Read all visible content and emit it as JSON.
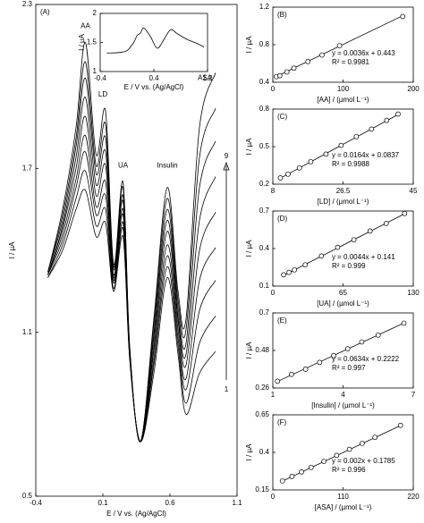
{
  "chart_data": [
    {
      "type": "line",
      "label": "(A)",
      "xlabel": "E / V vs. (Ag/AgCl)",
      "ylabel": "I / µA",
      "xlim": [
        -0.4,
        1.1
      ],
      "xticks": [
        -0.4,
        0.1,
        0.6,
        1.1
      ],
      "ylim": [
        0.5,
        2.3
      ],
      "yticks": [
        0.5,
        1.1,
        1.7,
        2.3
      ],
      "x": [
        -0.31,
        -0.2,
        -0.1,
        -0.03,
        0.05,
        0.12,
        0.18,
        0.25,
        0.3,
        0.38,
        0.48,
        0.58,
        0.66,
        0.72,
        0.82,
        0.94
      ],
      "series": [
        {
          "color": "#000000",
          "values": [
            1.3,
            1.4,
            1.55,
            1.62,
            1.45,
            1.5,
            1.25,
            1.45,
            1.0,
            0.7,
            0.95,
            1.3,
            1.02,
            0.8,
            0.95,
            1.03
          ]
        },
        {
          "color": "#000000",
          "values": [
            1.3,
            1.42,
            1.59,
            1.69,
            1.49,
            1.55,
            1.26,
            1.48,
            1.01,
            0.7,
            0.98,
            1.34,
            1.05,
            0.84,
            1.06,
            1.16
          ]
        },
        {
          "color": "#000000",
          "values": [
            1.31,
            1.44,
            1.63,
            1.76,
            1.53,
            1.6,
            1.28,
            1.5,
            1.01,
            0.7,
            1.0,
            1.38,
            1.08,
            0.89,
            1.18,
            1.29
          ]
        },
        {
          "color": "#000000",
          "values": [
            1.31,
            1.46,
            1.66,
            1.82,
            1.56,
            1.65,
            1.29,
            1.53,
            1.02,
            0.7,
            1.03,
            1.42,
            1.11,
            0.93,
            1.29,
            1.41
          ]
        },
        {
          "color": "#000000",
          "values": [
            1.31,
            1.48,
            1.7,
            1.89,
            1.6,
            1.71,
            1.3,
            1.55,
            1.03,
            0.7,
            1.05,
            1.47,
            1.14,
            0.98,
            1.4,
            1.54
          ]
        },
        {
          "color": "#000000",
          "values": [
            1.31,
            1.49,
            1.74,
            1.96,
            1.64,
            1.76,
            1.31,
            1.58,
            1.03,
            0.7,
            1.08,
            1.51,
            1.16,
            1.02,
            1.51,
            1.67
          ]
        },
        {
          "color": "#000000",
          "values": [
            1.32,
            1.51,
            1.78,
            2.03,
            1.68,
            1.81,
            1.33,
            1.6,
            1.04,
            0.7,
            1.1,
            1.55,
            1.19,
            1.06,
            1.63,
            1.8
          ]
        },
        {
          "color": "#000000",
          "values": [
            1.32,
            1.53,
            1.81,
            2.09,
            1.71,
            1.86,
            1.34,
            1.63,
            1.04,
            0.7,
            1.13,
            1.59,
            1.22,
            1.11,
            1.74,
            1.92
          ]
        },
        {
          "color": "#000000",
          "values": [
            1.32,
            1.55,
            1.85,
            2.16,
            1.75,
            1.91,
            1.35,
            1.65,
            1.05,
            0.7,
            1.15,
            1.63,
            1.25,
            1.15,
            1.85,
            2.05
          ]
        }
      ],
      "annotations": [
        {
          "text": "AA",
          "x": -0.03,
          "y": 2.22
        },
        {
          "text": "LD",
          "x": 0.1,
          "y": 1.97
        },
        {
          "text": "UA",
          "x": 0.25,
          "y": 1.71
        },
        {
          "text": "Insulin",
          "x": 0.58,
          "y": 1.71
        },
        {
          "text": "ASA",
          "x": 0.86,
          "y": 2.03
        }
      ],
      "arrow_labels": [
        "1",
        "9"
      ]
    },
    {
      "type": "line",
      "xlabel": "E / V vs. (Ag/AgCl)",
      "ylabel": "I / µA",
      "xlim": [
        -0.4,
        1.2
      ],
      "xticks": [
        -0.4,
        0.4,
        1.2
      ],
      "ylim": [
        1,
        2
      ],
      "yticks": [
        1,
        1.5,
        2
      ],
      "x": [
        -0.3,
        -0.2,
        -0.1,
        0,
        0.1,
        0.15,
        0.2,
        0.25,
        0.35,
        0.45,
        0.55,
        0.65,
        0.75,
        0.9,
        1.05,
        1.15
      ],
      "series": [
        {
          "color": "#000000",
          "values": [
            1.32,
            1.32,
            1.33,
            1.36,
            1.5,
            1.62,
            1.66,
            1.75,
            1.6,
            1.4,
            1.55,
            1.72,
            1.65,
            1.55,
            1.48,
            1.42
          ]
        }
      ]
    },
    {
      "type": "scatter",
      "label": "(B)",
      "xlabel": "[AA] / (µmol L⁻¹)",
      "ylabel": "I / µA",
      "xlim": [
        0,
        200
      ],
      "xticks": [
        0,
        100,
        200
      ],
      "ylim": [
        0.4,
        1.2
      ],
      "yticks": [
        0.4,
        0.8,
        1.2
      ],
      "x": [
        5,
        10,
        20,
        30,
        50,
        70,
        95,
        185
      ],
      "values": [
        0.46,
        0.47,
        0.51,
        0.55,
        0.62,
        0.69,
        0.79,
        1.1
      ],
      "fit": {
        "slope": 0.0036,
        "intercept": 0.443,
        "label": "y = 0.0036x + 0.443",
        "r2_label": "R² = 0.9981"
      }
    },
    {
      "type": "scatter",
      "label": "(C)",
      "xlabel": "[LD] / (µmol L⁻¹)",
      "ylabel": "I / µA",
      "xlim": [
        8,
        45
      ],
      "xticks": [
        8,
        26.5,
        45
      ],
      "ylim": [
        0.2,
        0.8
      ],
      "yticks": [
        0.2,
        0.5,
        0.8
      ],
      "x": [
        10,
        12,
        15,
        18,
        22,
        26,
        30,
        34,
        38,
        41
      ],
      "values": [
        0.25,
        0.28,
        0.33,
        0.38,
        0.44,
        0.51,
        0.58,
        0.64,
        0.71,
        0.76
      ],
      "fit": {
        "slope": 0.0164,
        "intercept": 0.0837,
        "label": "y = 0.0164x + 0.0837",
        "r2_label": "R² = 0.9988"
      }
    },
    {
      "type": "scatter",
      "label": "(D)",
      "xlabel": "[UA] / (µmol L⁻¹)",
      "ylabel": "I / µA",
      "xlim": [
        0,
        130
      ],
      "xticks": [
        0,
        65,
        130
      ],
      "ylim": [
        0.1,
        0.7
      ],
      "yticks": [
        0.1,
        0.4,
        0.7
      ],
      "x": [
        10,
        15,
        20,
        30,
        45,
        60,
        75,
        90,
        105,
        122
      ],
      "values": [
        0.19,
        0.21,
        0.23,
        0.27,
        0.34,
        0.41,
        0.47,
        0.54,
        0.6,
        0.68
      ],
      "fit": {
        "slope": 0.0044,
        "intercept": 0.141,
        "label": "y = 0.0044x + 0.141",
        "r2_label": "R² = 0.999"
      }
    },
    {
      "type": "scatter",
      "label": "(E)",
      "xlabel": "[Insulin] / (µmol L⁻¹)",
      "ylabel": "I / µA",
      "xlim": [
        1,
        7
      ],
      "xticks": [
        1,
        4,
        7
      ],
      "ylim": [
        0.26,
        0.7
      ],
      "yticks": [
        0.26,
        0.48,
        0.7
      ],
      "x": [
        1.2,
        1.8,
        2.4,
        3,
        3.6,
        4.2,
        4.8,
        5.5,
        6.6
      ],
      "values": [
        0.3,
        0.34,
        0.37,
        0.41,
        0.45,
        0.49,
        0.53,
        0.57,
        0.64
      ],
      "fit": {
        "slope": 0.0634,
        "intercept": 0.2222,
        "label": "y = 0.0634x + 0.2222",
        "r2_label": "R² = 0.997"
      }
    },
    {
      "type": "scatter",
      "label": "(F)",
      "xlabel": "[ASA] / (µmol L⁻¹)",
      "ylabel": "I / µA",
      "xlim": [
        0,
        220
      ],
      "xticks": [
        0,
        110,
        220
      ],
      "ylim": [
        0.15,
        0.65
      ],
      "yticks": [
        0.15,
        0.4,
        0.65
      ],
      "x": [
        15,
        30,
        45,
        60,
        80,
        100,
        120,
        140,
        160,
        200
      ],
      "values": [
        0.21,
        0.24,
        0.27,
        0.3,
        0.34,
        0.38,
        0.42,
        0.46,
        0.5,
        0.58
      ],
      "fit": {
        "slope": 0.002,
        "intercept": 0.1785,
        "label": "y = 0.002x + 0.1785",
        "r2_label": "R² = 0.996"
      }
    }
  ]
}
